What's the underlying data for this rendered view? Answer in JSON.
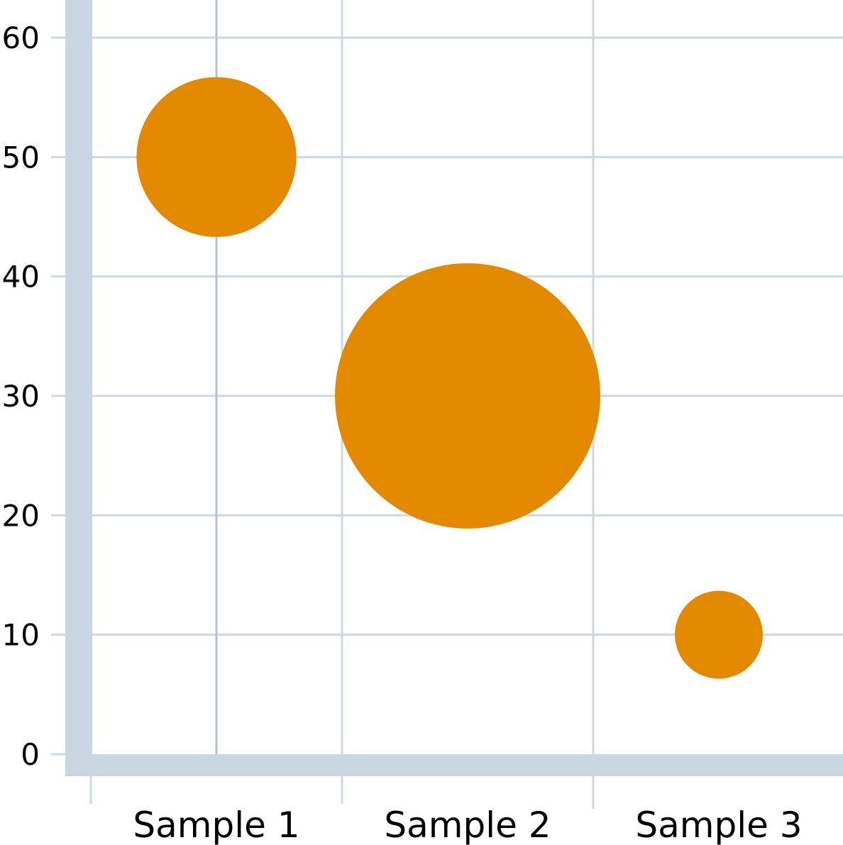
{
  "chart_data": {
    "type": "scatter",
    "subtype": "bubble",
    "title": "",
    "xlabel": "",
    "ylabel": "",
    "categories": [
      "Sample 1",
      "Sample 2",
      "Sample 3"
    ],
    "y": [
      50,
      30,
      10
    ],
    "sizes": [
      33,
      91,
      10
    ],
    "ylim": [
      0,
      60
    ],
    "yticks": [
      "0",
      "10",
      "20",
      "30",
      "40",
      "50",
      "60"
    ],
    "grid": true,
    "legend": "none",
    "colors": {
      "bubble": "#e38900",
      "axis": "#cad6e2",
      "grid": "#ced8e2",
      "highlight_grid": "#b4c2d3",
      "text": "#000000"
    }
  }
}
